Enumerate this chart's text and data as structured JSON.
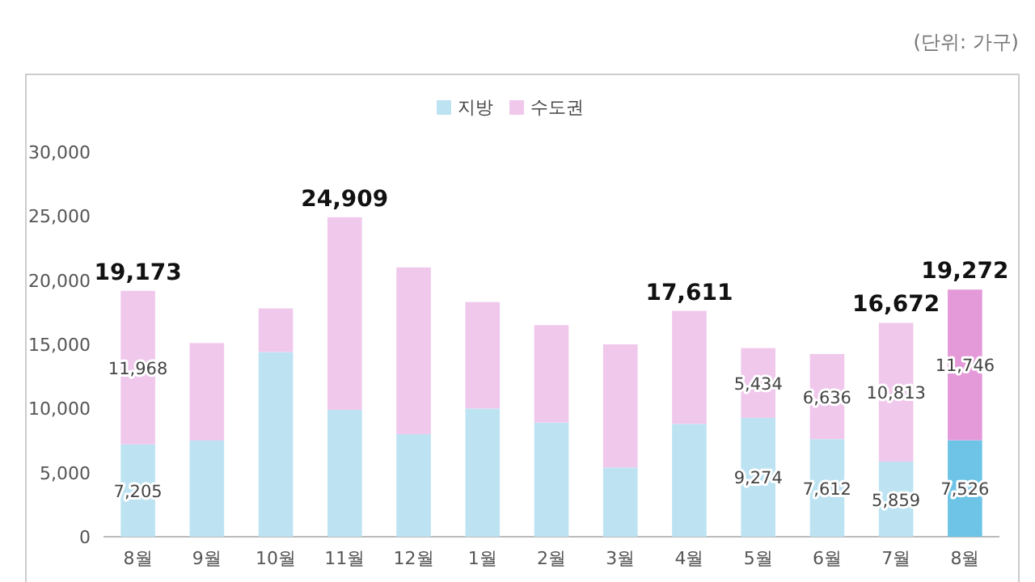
{
  "chart_data": {
    "type": "bar",
    "stacked": true,
    "legend": "top",
    "annotations": [
      "(단위: 가구)"
    ],
    "categories": [
      "8월",
      "9월",
      "10월",
      "11월",
      "12월",
      "1월",
      "2월",
      "3월",
      "4월",
      "5월",
      "6월",
      "7월",
      "8월"
    ],
    "ylim": [
      0,
      30000
    ],
    "yticks": [
      {
        "value": 0,
        "label": "0"
      },
      {
        "value": 5000,
        "label": "5,000"
      },
      {
        "value": 10000,
        "label": "10,000"
      },
      {
        "value": 15000,
        "label": "15,000"
      },
      {
        "value": 20000,
        "label": "20,000"
      },
      {
        "value": 25000,
        "label": "25,000"
      },
      {
        "value": 30000,
        "label": "30,000"
      }
    ],
    "series": [
      {
        "name": "지방",
        "color": "#bde3f2",
        "colors": [
          "#bde3f2",
          "#bde3f2",
          "#bde3f2",
          "#bde3f2",
          "#bde3f2",
          "#bde3f2",
          "#bde3f2",
          "#bde3f2",
          "#bde3f2",
          "#bde3f2",
          "#bde3f2",
          "#bde3f2",
          "#6ec4e6"
        ],
        "values": [
          7205,
          7500,
          14400,
          9900,
          8000,
          10000,
          8900,
          5400,
          8800,
          9274,
          7612,
          5859,
          7526
        ],
        "value_labels": [
          "7,205",
          null,
          null,
          null,
          null,
          null,
          null,
          null,
          null,
          "9,274",
          "7,612",
          "5,859",
          "7,526"
        ]
      },
      {
        "name": "수도권",
        "color": "#f0c8ec",
        "colors": [
          "#f0c8ec",
          "#f0c8ec",
          "#f0c8ec",
          "#f0c8ec",
          "#f0c8ec",
          "#f0c8ec",
          "#f0c8ec",
          "#f0c8ec",
          "#f0c8ec",
          "#f0c8ec",
          "#f0c8ec",
          "#f0c8ec",
          "#e49ad8"
        ],
        "values": [
          11968,
          7600,
          3400,
          15009,
          13000,
          8300,
          7600,
          9600,
          8811,
          5434,
          6636,
          10813,
          11746
        ],
        "value_labels": [
          "11,968",
          null,
          null,
          null,
          null,
          null,
          null,
          null,
          null,
          "5,434",
          "6,636",
          "10,813",
          "11,746"
        ]
      }
    ],
    "totals": [
      "19,173",
      null,
      null,
      "24,909",
      null,
      null,
      null,
      null,
      "17,611",
      null,
      null,
      "16,672",
      "19,272"
    ]
  }
}
